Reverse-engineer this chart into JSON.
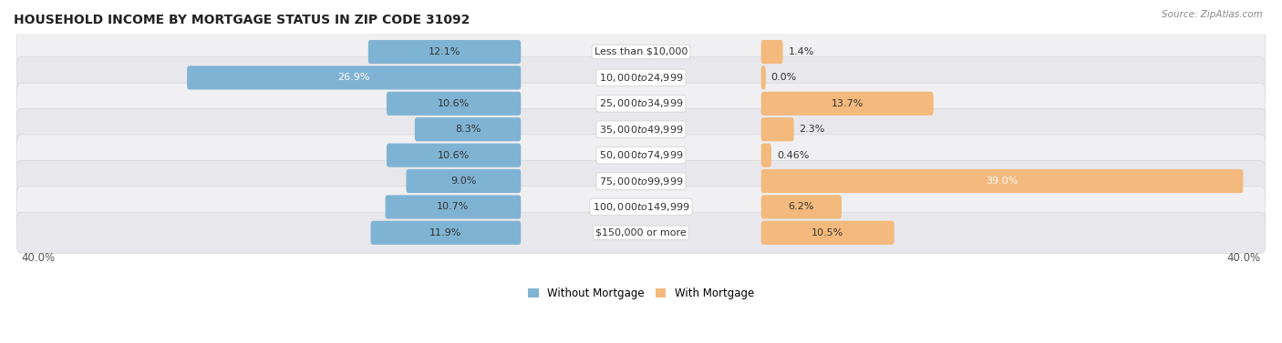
{
  "title": "HOUSEHOLD INCOME BY MORTGAGE STATUS IN ZIP CODE 31092",
  "source": "Source: ZipAtlas.com",
  "categories": [
    "Less than $10,000",
    "$10,000 to $24,999",
    "$25,000 to $34,999",
    "$35,000 to $49,999",
    "$50,000 to $74,999",
    "$75,000 to $99,999",
    "$100,000 to $149,999",
    "$150,000 or more"
  ],
  "without_mortgage": [
    12.1,
    26.9,
    10.6,
    8.3,
    10.6,
    9.0,
    10.7,
    11.9
  ],
  "with_mortgage": [
    1.4,
    0.0,
    13.7,
    2.3,
    0.46,
    39.0,
    6.2,
    10.5
  ],
  "without_mortgage_labels": [
    "12.1%",
    "26.9%",
    "10.6%",
    "8.3%",
    "10.6%",
    "9.0%",
    "10.7%",
    "11.9%"
  ],
  "with_mortgage_labels": [
    "1.4%",
    "0.0%",
    "13.7%",
    "2.3%",
    "0.46%",
    "39.0%",
    "6.2%",
    "10.5%"
  ],
  "color_without": "#7fb3d3",
  "color_with": "#f4b97c",
  "axis_limit": 40.0,
  "axis_label_left": "40.0%",
  "axis_label_right": "40.0%",
  "legend_without": "Without Mortgage",
  "legend_with": "With Mortgage",
  "title_fontsize": 10,
  "label_fontsize": 8,
  "category_fontsize": 8
}
